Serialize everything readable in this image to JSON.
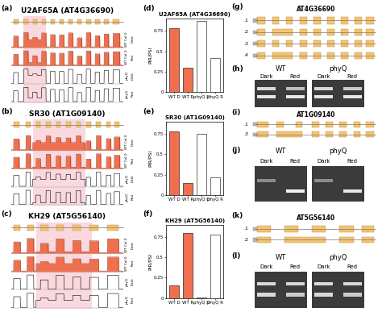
{
  "chart_data": [
    {
      "type": "bar",
      "panel": "(d)",
      "title": "U2AF65A (AT4G36690)",
      "y_label": "PIR/PSI",
      "categories": [
        "WT D",
        "WT R",
        "phyQ D",
        "phyQ R"
      ],
      "values": [
        0.78,
        0.3,
        0.87,
        0.42
      ],
      "colors": [
        "#ef6f4f",
        "#ef6f4f",
        "#ffffff",
        "#ffffff"
      ],
      "ylim": [
        0,
        0.9
      ],
      "yticks": [
        0,
        0.25,
        0.5,
        0.75
      ],
      "grid": false
    },
    {
      "type": "bar",
      "panel": "(e)",
      "title": "SR30 (AT1G09140)",
      "y_label": "PIR/PSI",
      "categories": [
        "WT D",
        "WT R",
        "phyQ D",
        "phyQ R"
      ],
      "values": [
        0.78,
        0.15,
        0.75,
        0.22
      ],
      "colors": [
        "#ef6f4f",
        "#ef6f4f",
        "#ffffff",
        "#ffffff"
      ],
      "ylim": [
        0,
        0.9
      ],
      "yticks": [
        0,
        0.25,
        0.5,
        0.75
      ],
      "grid": false
    },
    {
      "type": "bar",
      "panel": "(f)",
      "title": "KH29 (AT5G56140)",
      "y_label": "PIR/PSI",
      "categories": [
        "WT D",
        "WT R",
        "phyQ D",
        "phyQ R"
      ],
      "values": [
        0.15,
        0.8,
        0.01,
        0.78
      ],
      "colors": [
        "#ef6f4f",
        "#ef6f4f",
        "#ffffff",
        "#ffffff"
      ],
      "ylim": [
        0,
        0.9
      ],
      "yticks": [
        0,
        0.25,
        0.5,
        0.75
      ],
      "grid": false
    }
  ],
  "coverage_panels": [
    {
      "panel": "(a)",
      "title": "U2AF65A (AT4G36690)",
      "tracks": [
        {
          "genotype": "WT Col-0",
          "condition": "Dark"
        },
        {
          "genotype": "WT Col-0",
          "condition": "Red"
        },
        {
          "genotype": "phyQ",
          "condition": "Dark"
        },
        {
          "genotype": "phyQ",
          "condition": "Red"
        }
      ]
    },
    {
      "panel": "(b)",
      "title": "SR30 (AT1G09140)",
      "tracks": [
        {
          "genotype": "WT Col-0",
          "condition": "Dark"
        },
        {
          "genotype": "WT Col-0",
          "condition": "Red"
        },
        {
          "genotype": "phyQ",
          "condition": "Dark"
        },
        {
          "genotype": "phyQ",
          "condition": "Red"
        }
      ]
    },
    {
      "panel": "(c)",
      "title": "KH29 (AT5G56140)",
      "tracks": [
        {
          "genotype": "WT Col-0",
          "condition": "Dark"
        },
        {
          "genotype": "WT Col-0",
          "condition": "Red"
        },
        {
          "genotype": "phyQ",
          "condition": "Dark"
        },
        {
          "genotype": "phyQ",
          "condition": "Red"
        }
      ]
    }
  ],
  "gene_models": [
    {
      "panel": "(g)",
      "gene": "AT4G36690",
      "isoforms": [
        ".1",
        ".2",
        ".3",
        ".4"
      ]
    },
    {
      "panel": "(i)",
      "gene": "AT1G09140",
      "isoforms": [
        ".1",
        ".3"
      ]
    },
    {
      "panel": "(k)",
      "gene": "AT5G56140",
      "isoforms": [
        ".1",
        ".2"
      ]
    }
  ],
  "gels": [
    {
      "panel": "(h)",
      "genotypes": [
        "WT",
        "phyQ"
      ],
      "conditions": [
        "Dark",
        "Red"
      ]
    },
    {
      "panel": "(j)",
      "genotypes": [
        "WT",
        "phyQ"
      ],
      "conditions": [
        "Dark",
        "Red"
      ]
    },
    {
      "panel": "(l)",
      "genotypes": [
        "WT",
        "phyQ"
      ],
      "conditions": [
        "Dark",
        "Red"
      ]
    }
  ]
}
